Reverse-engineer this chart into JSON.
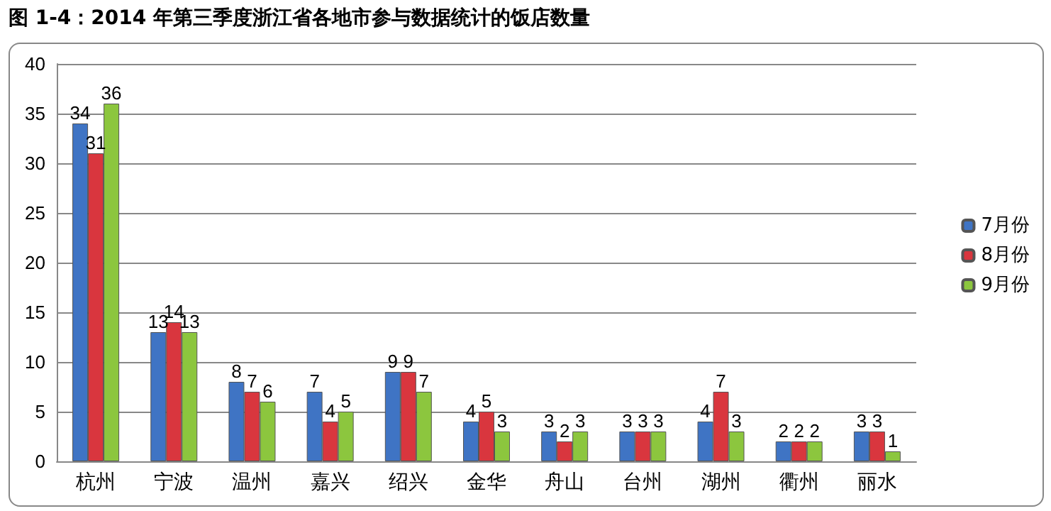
{
  "chart_data": {
    "type": "bar",
    "title": "图 1-4：2014 年第三季度浙江省各地市参与数据统计的饭店数量",
    "categories": [
      "杭州",
      "宁波",
      "温州",
      "嘉兴",
      "绍兴",
      "金华",
      "舟山",
      "台州",
      "湖州",
      "衢州",
      "丽水"
    ],
    "series": [
      {
        "name": "7月份",
        "color": "#3f74c4",
        "values": [
          34,
          13,
          8,
          7,
          9,
          4,
          3,
          3,
          4,
          2,
          3
        ]
      },
      {
        "name": "8月份",
        "color": "#d9363e",
        "values": [
          31,
          14,
          7,
          4,
          9,
          5,
          2,
          3,
          7,
          2,
          3
        ]
      },
      {
        "name": "9月份",
        "color": "#8cc63e",
        "values": [
          36,
          13,
          6,
          5,
          7,
          3,
          3,
          3,
          3,
          2,
          1
        ]
      }
    ],
    "ylim": [
      0,
      40
    ],
    "yticks": [
      0,
      5,
      10,
      15,
      20,
      25,
      30,
      35,
      40
    ],
    "grid": "y",
    "legend": "right",
    "data_labels": true
  }
}
